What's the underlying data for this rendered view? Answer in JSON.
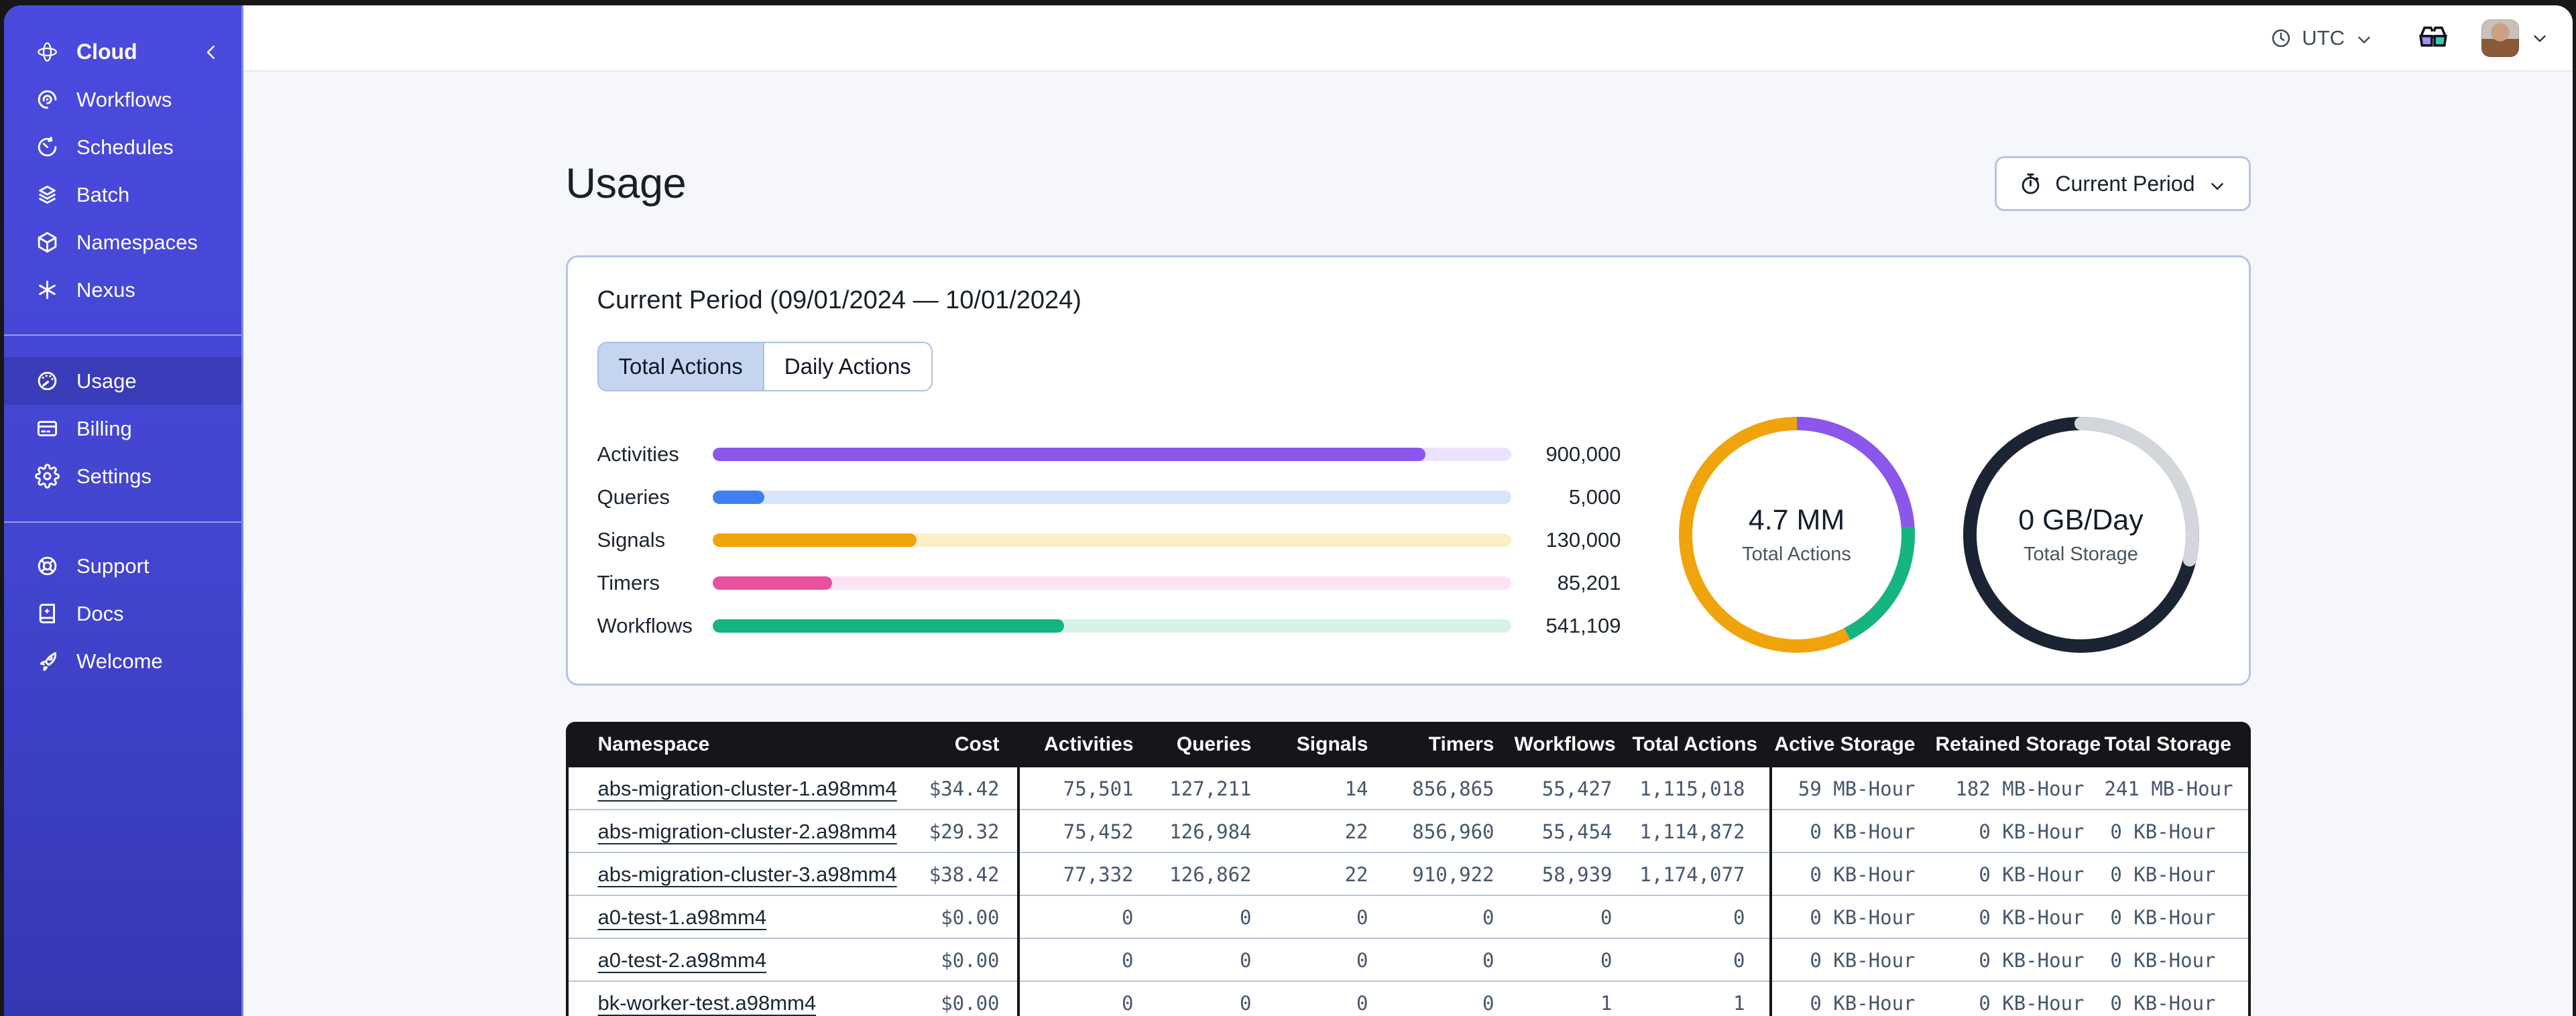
{
  "topbar": {
    "timezone_label": "UTC"
  },
  "sidebar": {
    "brand": {
      "label": "Cloud",
      "icon": "temporal-logo-icon",
      "collapse_icon": "chevron-left-icon"
    },
    "sections": [
      {
        "name": "nav-main",
        "items": [
          {
            "id": "workflows",
            "label": "Workflows",
            "icon": "workflows-icon",
            "selected": false
          },
          {
            "id": "schedules",
            "label": "Schedules",
            "icon": "schedules-icon",
            "selected": false
          },
          {
            "id": "batch",
            "label": "Batch",
            "icon": "batch-icon",
            "selected": false
          },
          {
            "id": "namespaces",
            "label": "Namespaces",
            "icon": "namespaces-icon",
            "selected": false
          },
          {
            "id": "nexus",
            "label": "Nexus",
            "icon": "nexus-icon",
            "selected": false
          }
        ]
      },
      {
        "name": "nav-account",
        "items": [
          {
            "id": "usage",
            "label": "Usage",
            "icon": "usage-gauge-icon",
            "selected": true
          },
          {
            "id": "billing",
            "label": "Billing",
            "icon": "billing-card-icon",
            "selected": false
          },
          {
            "id": "settings",
            "label": "Settings",
            "icon": "settings-gear-icon",
            "selected": false
          }
        ]
      },
      {
        "name": "nav-help",
        "items": [
          {
            "id": "support",
            "label": "Support",
            "icon": "support-lifebuoy-icon",
            "selected": false
          },
          {
            "id": "docs",
            "label": "Docs",
            "icon": "docs-book-icon",
            "selected": false
          },
          {
            "id": "welcome",
            "label": "Welcome",
            "icon": "welcome-rocket-icon",
            "selected": false
          }
        ]
      }
    ]
  },
  "page": {
    "title": "Usage",
    "period_button_label": "Current Period",
    "card_title": "Current Period (09/01/2024 — 10/01/2024)",
    "tabs": [
      {
        "label": "Total Actions",
        "active": true
      },
      {
        "label": "Daily Actions",
        "active": false
      }
    ]
  },
  "colors": {
    "accent_indigo": "#4B4AE0",
    "purple": "#8B56EC",
    "blue": "#3E80F2",
    "orange": "#F0A40C",
    "pink": "#E8529D",
    "green": "#14B483",
    "dark_navy": "#1B2433",
    "gray_ring": "#D3D7DC"
  },
  "chart_data": [
    {
      "type": "bar",
      "orientation": "horizontal",
      "title": "Total Actions by type (current period)",
      "categories": [
        "Activities",
        "Queries",
        "Signals",
        "Timers",
        "Workflows"
      ],
      "values": [
        900000,
        5000,
        130000,
        85201,
        541109
      ],
      "display_values": [
        "900,000",
        "5,000",
        "130,000",
        "85,201",
        "541,109"
      ],
      "fill_pct": [
        89.3,
        6.5,
        25.6,
        15.0,
        44.0
      ],
      "bar_colors": [
        "#8B56EC",
        "#3E80F2",
        "#F0A40C",
        "#E8529D",
        "#14B483"
      ],
      "track_colors": [
        "#EAE3FB",
        "#D8E5FB",
        "#FAEFC7",
        "#FBE3F4",
        "#D7F3E5"
      ],
      "grid": false,
      "legend": "none"
    },
    {
      "type": "pie",
      "subtype": "donut",
      "center_value": "4.7 MM",
      "center_label": "Total Actions",
      "segments": [
        {
          "name": "purple",
          "color": "#8B56EC",
          "pct": 23.9
        },
        {
          "name": "green",
          "color": "#14B483",
          "pct": 18.6
        },
        {
          "name": "orange",
          "color": "#F0A40C",
          "pct": 57.5
        }
      ],
      "start_angle_deg": 0,
      "legend": "none"
    },
    {
      "type": "pie",
      "subtype": "donut",
      "center_value": "0 GB/Day",
      "center_label": "Total Storage",
      "segments": [
        {
          "name": "gray",
          "color": "#D3D7DC",
          "pct": 28.6
        },
        {
          "name": "dark",
          "color": "#1B2433",
          "pct": 71.4
        }
      ],
      "start_angle_deg": 0,
      "rounded_caps": true,
      "legend": "none"
    }
  ],
  "table": {
    "columns": [
      "Namespace",
      "Cost",
      "Activities",
      "Queries",
      "Signals",
      "Timers",
      "Workflows",
      "Total Actions",
      "Active Storage",
      "Retained Storage",
      "Total Storage"
    ],
    "rows": [
      [
        "abs-migration-cluster-1.a98mm4",
        "$34.42",
        "75,501",
        "127,211",
        "14",
        "856,865",
        "55,427",
        "1,115,018",
        "59 MB-Hour",
        "182 MB-Hour",
        "241 MB-Hour"
      ],
      [
        "abs-migration-cluster-2.a98mm4",
        "$29.32",
        "75,452",
        "126,984",
        "22",
        "856,960",
        "55,454",
        "1,114,872",
        "0 KB-Hour",
        "0 KB-Hour",
        "0 KB-Hour"
      ],
      [
        "abs-migration-cluster-3.a98mm4",
        "$38.42",
        "77,332",
        "126,862",
        "22",
        "910,922",
        "58,939",
        "1,174,077",
        "0 KB-Hour",
        "0 KB-Hour",
        "0 KB-Hour"
      ],
      [
        "a0-test-1.a98mm4",
        "$0.00",
        "0",
        "0",
        "0",
        "0",
        "0",
        "0",
        "0 KB-Hour",
        "0 KB-Hour",
        "0 KB-Hour"
      ],
      [
        "a0-test-2.a98mm4",
        "$0.00",
        "0",
        "0",
        "0",
        "0",
        "0",
        "0",
        "0 KB-Hour",
        "0 KB-Hour",
        "0 KB-Hour"
      ],
      [
        "bk-worker-test.a98mm4",
        "$0.00",
        "0",
        "0",
        "0",
        "0",
        "1",
        "1",
        "0 KB-Hour",
        "0 KB-Hour",
        "0 KB-Hour"
      ]
    ]
  }
}
